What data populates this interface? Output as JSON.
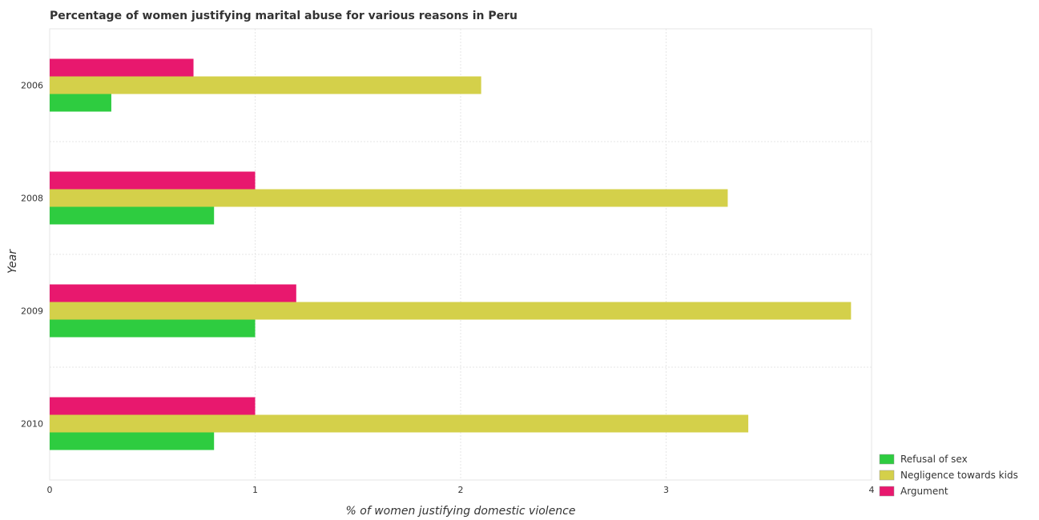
{
  "chart_data": {
    "type": "bar",
    "orientation": "horizontal",
    "title": "Percentage of women justifying marital abuse for various reasons in Peru",
    "xlabel": "% of women justifying domestic violence",
    "ylabel": "Year",
    "categories": [
      "2006",
      "2008",
      "2009",
      "2010"
    ],
    "xlim": [
      0,
      4
    ],
    "xticks": [
      "0",
      "1",
      "2",
      "3",
      "4"
    ],
    "grid": true,
    "legend_position": "bottom-right",
    "series": [
      {
        "name": "Refusal of sex",
        "color": "#2ecc40",
        "values": [
          0.3,
          0.8,
          1.0,
          0.8
        ]
      },
      {
        "name": "Negligence towards kids",
        "color": "#d4d04a",
        "values": [
          2.1,
          3.3,
          3.9,
          3.4
        ]
      },
      {
        "name": "Argument",
        "color": "#e8186e",
        "values": [
          0.7,
          1.0,
          1.2,
          1.0
        ]
      }
    ]
  }
}
